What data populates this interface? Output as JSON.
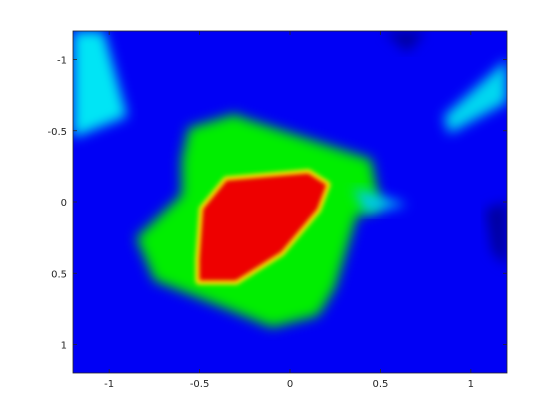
{
  "chart_data": {
    "type": "heatmap",
    "title": "",
    "xlabel": "",
    "ylabel": "",
    "xlim": [
      -1.2,
      1.2
    ],
    "ylim": [
      -1.2,
      1.2
    ],
    "y_direction": "reversed",
    "grid": false,
    "legend": "none",
    "colormap": "jet",
    "x_ticks": [
      {
        "value": -1,
        "label": "-1"
      },
      {
        "value": -0.5,
        "label": "-0.5"
      },
      {
        "value": 0,
        "label": "0"
      },
      {
        "value": 0.5,
        "label": "0.5"
      },
      {
        "value": 1,
        "label": "1"
      }
    ],
    "y_ticks": [
      {
        "value": -1,
        "label": "-1"
      },
      {
        "value": -0.5,
        "label": "-0.5"
      },
      {
        "value": 0,
        "label": "0"
      },
      {
        "value": 0.5,
        "label": "0.5"
      },
      {
        "value": 1,
        "label": "1"
      }
    ],
    "regions": [
      {
        "level": "green",
        "color": "#00ee00",
        "polygon": [
          [
            -0.56,
            -0.52
          ],
          [
            -0.3,
            -0.62
          ],
          [
            -0.28,
            -0.6
          ],
          [
            0.45,
            -0.3
          ],
          [
            0.5,
            0.05
          ],
          [
            0.37,
            0.1
          ],
          [
            0.25,
            0.6
          ],
          [
            0.18,
            0.75
          ],
          [
            0.15,
            0.8
          ],
          [
            -0.1,
            0.88
          ],
          [
            -0.35,
            0.75
          ],
          [
            -0.75,
            0.55
          ],
          [
            -0.85,
            0.25
          ],
          [
            -0.6,
            -0.05
          ],
          [
            -0.6,
            -0.3
          ]
        ]
      },
      {
        "level": "red",
        "color": "#ee0000",
        "polygon": [
          [
            -0.35,
            -0.15
          ],
          [
            0.1,
            -0.2
          ],
          [
            0.2,
            -0.12
          ],
          [
            0.15,
            0.05
          ],
          [
            -0.05,
            0.35
          ],
          [
            -0.3,
            0.55
          ],
          [
            -0.5,
            0.55
          ],
          [
            -0.5,
            0.4
          ],
          [
            -0.48,
            0.05
          ]
        ]
      },
      {
        "level": "cyan",
        "color": "#00e5f5",
        "polygon": [
          [
            -1.2,
            -1.2
          ],
          [
            -1.03,
            -1.2
          ],
          [
            -0.9,
            -0.6
          ],
          [
            -1.2,
            -0.45
          ]
        ]
      },
      {
        "level": "cyan",
        "color": "#00d8f0",
        "polygon": [
          [
            0.85,
            -0.6
          ],
          [
            1.2,
            -1.0
          ],
          [
            1.2,
            -0.7
          ],
          [
            0.88,
            -0.48
          ]
        ]
      },
      {
        "level": "cyan",
        "color": "#00c8f0",
        "polygon": [
          [
            0.35,
            -0.1
          ],
          [
            0.65,
            0.02
          ],
          [
            0.42,
            0.08
          ]
        ]
      },
      {
        "level": "dark-blue",
        "color": "#0000a0",
        "polygon": [
          [
            0.52,
            -1.2
          ],
          [
            0.75,
            -1.2
          ],
          [
            0.65,
            -1.05
          ]
        ]
      },
      {
        "level": "dark-blue",
        "color": "#0000a0",
        "polygon": [
          [
            1.08,
            0.05
          ],
          [
            1.2,
            0.0
          ],
          [
            1.2,
            0.45
          ],
          [
            1.12,
            0.35
          ]
        ]
      }
    ]
  }
}
